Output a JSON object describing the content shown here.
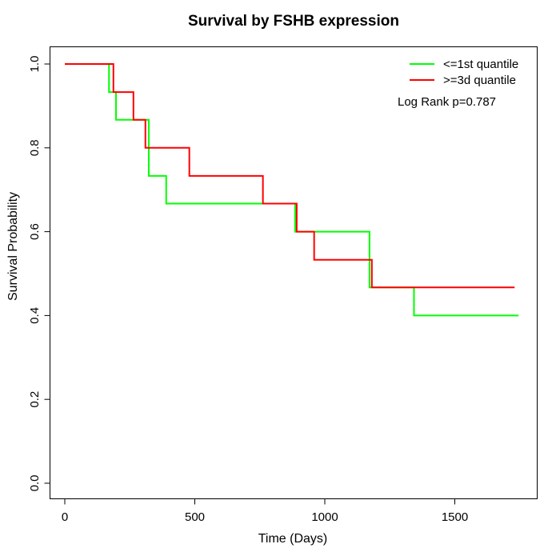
{
  "chart_data": {
    "type": "line",
    "subtype": "kaplan-meier-step",
    "title": "Survival by FSHB expression",
    "xlabel": "Time (Days)",
    "ylabel": "Survival Probability",
    "xlim": [
      0,
      1800
    ],
    "ylim": [
      0.0,
      1.0
    ],
    "x_ticks": [
      0,
      500,
      1000,
      1500
    ],
    "y_ticks": [
      0.0,
      0.2,
      0.4,
      0.6,
      0.8,
      1.0
    ],
    "grid": false,
    "legend_position": "top-right",
    "annotation": "Log Rank p=0.787",
    "axis_color": "#000000",
    "series": [
      {
        "name": "<=1st quantile",
        "color": "#00ff00",
        "start": [
          0,
          1.0
        ],
        "events": [
          [
            170,
            0.933
          ],
          [
            197,
            0.867
          ],
          [
            323,
            0.733
          ],
          [
            390,
            0.667
          ],
          [
            886,
            0.6
          ],
          [
            1172,
            0.467
          ],
          [
            1343,
            0.4
          ]
        ],
        "end_time": 1745
      },
      {
        "name": ">=3d quantile",
        "color": "#ff0000",
        "start": [
          0,
          1.0
        ],
        "events": [
          [
            187,
            0.933
          ],
          [
            264,
            0.867
          ],
          [
            310,
            0.8
          ],
          [
            479,
            0.733
          ],
          [
            762,
            0.667
          ],
          [
            892,
            0.6
          ],
          [
            959,
            0.533
          ],
          [
            1181,
            0.467
          ]
        ],
        "end_time": 1730
      }
    ]
  }
}
